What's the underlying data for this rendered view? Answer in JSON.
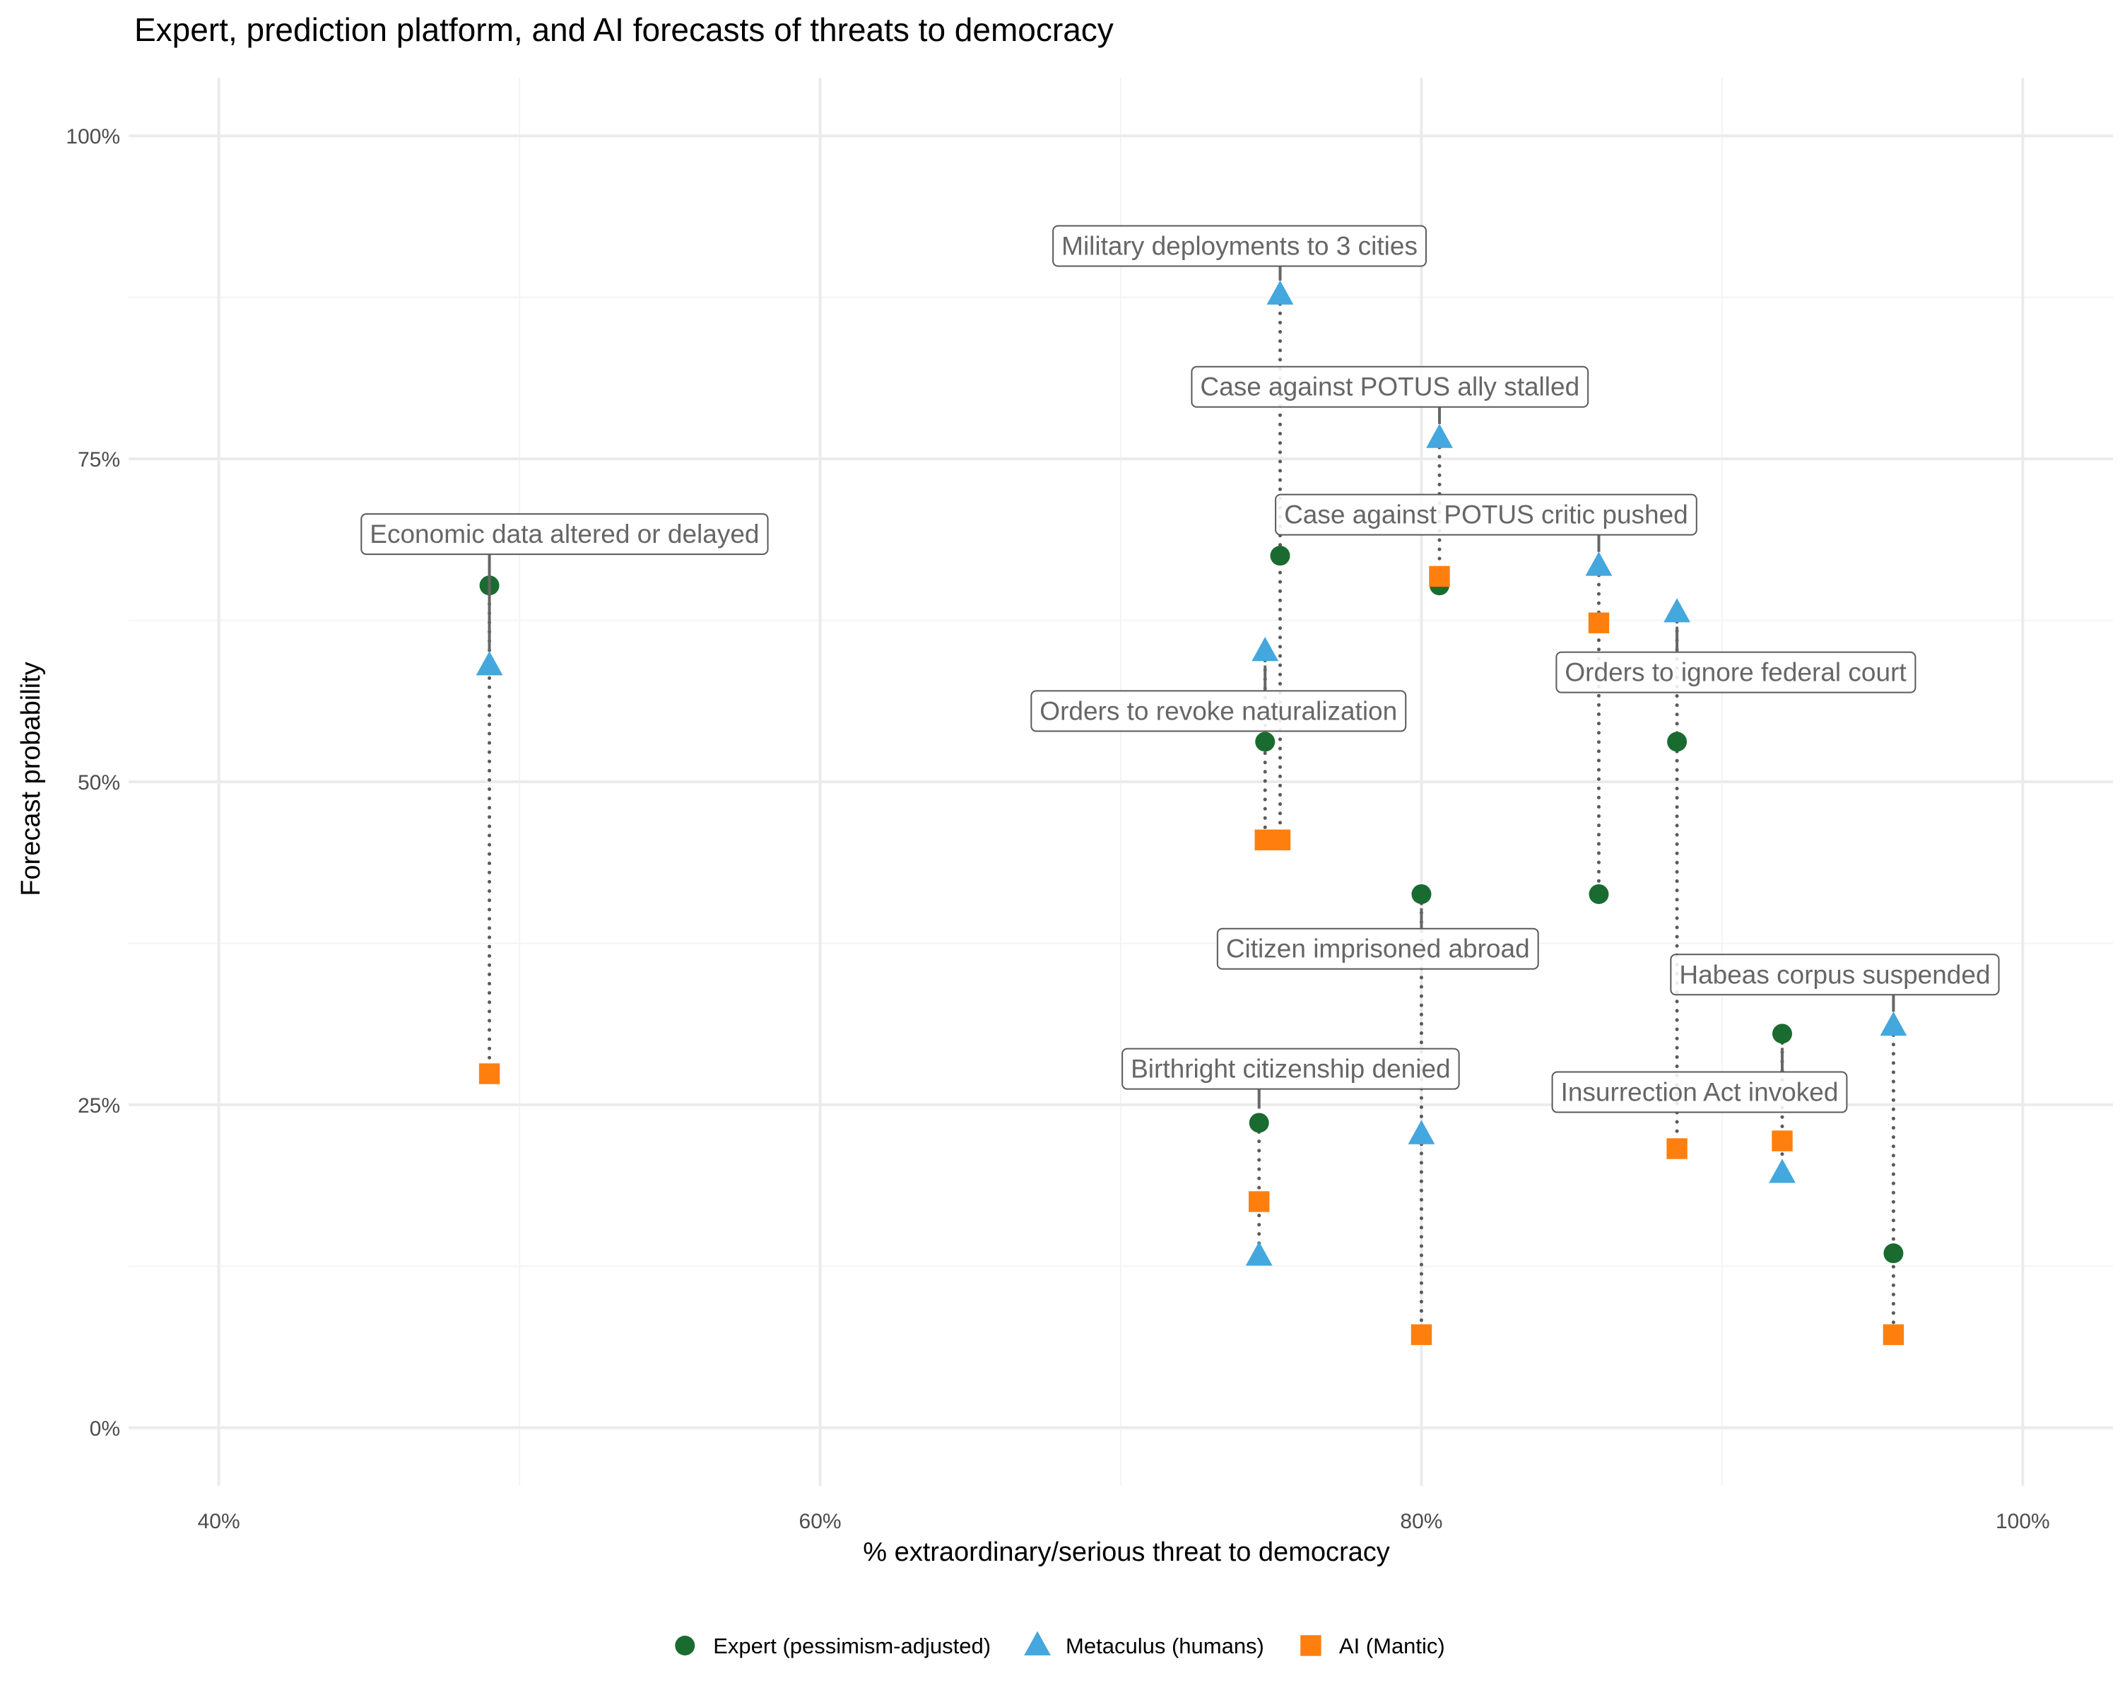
{
  "chart_data": {
    "type": "scatter",
    "title": "Expert, prediction platform, and AI forecasts of threats to democracy",
    "xlabel": "% extraordinary/serious threat to democracy",
    "ylabel": "Forecast probability",
    "xlim": [
      0.37,
      1.03
    ],
    "ylim": [
      -0.045,
      1.045
    ],
    "x_ticks": [
      {
        "value": 0.4,
        "label": "40%"
      },
      {
        "value": 0.6,
        "label": "60%"
      },
      {
        "value": 0.8,
        "label": "80%"
      },
      {
        "value": 1.0,
        "label": "100%"
      }
    ],
    "y_ticks": [
      {
        "value": 0.0,
        "label": "0%"
      },
      {
        "value": 0.25,
        "label": "25%"
      },
      {
        "value": 0.5,
        "label": "50%"
      },
      {
        "value": 0.75,
        "label": "75%"
      },
      {
        "value": 1.0,
        "label": "100%"
      }
    ],
    "grid": true,
    "legend_position": "bottom",
    "legend": [
      {
        "label": "Expert (pessimism-adjusted)",
        "shape": "circle",
        "color": "#1a6b30"
      },
      {
        "label": "Metaculus (humans)",
        "shape": "triangle",
        "color": "#44a7dd"
      },
      {
        "label": "AI (Mantic)",
        "shape": "square",
        "color": "#ff7f0e"
      }
    ],
    "events": [
      {
        "label": "Economic data altered or delayed",
        "x": 0.49,
        "expert": 0.652,
        "metaculus": 0.59,
        "ai": 0.274,
        "label_at": "metaculus",
        "label_x": 0.515,
        "label_y": 0.692
      },
      {
        "label": "Military deployments to 3 cities",
        "x": 0.753,
        "expert": 0.675,
        "metaculus": 0.877,
        "ai": 0.455,
        "label_at": "metaculus",
        "label_x": 0.7395,
        "label_y": 0.915
      },
      {
        "label": "Case against POTUS ally stalled",
        "x": 0.806,
        "expert": 0.652,
        "metaculus": 0.766,
        "ai": 0.659,
        "label_at": "metaculus",
        "label_x": 0.7895,
        "label_y": 0.806
      },
      {
        "label": "Case against POTUS critic pushed",
        "x": 0.859,
        "expert": 0.413,
        "metaculus": 0.667,
        "ai": 0.623,
        "label_at": "metaculus",
        "label_x": 0.8215,
        "label_y": 0.707
      },
      {
        "label": "Orders to revoke naturalization",
        "x": 0.748,
        "expert": 0.531,
        "metaculus": 0.601,
        "ai": 0.455,
        "label_at": "metaculus",
        "label_x": 0.7325,
        "label_y": 0.555
      },
      {
        "label": "Orders to ignore federal court",
        "x": 0.885,
        "expert": 0.531,
        "metaculus": 0.631,
        "ai": 0.216,
        "label_at": "metaculus",
        "label_x": 0.9045,
        "label_y": 0.585
      },
      {
        "label": "Citizen imprisoned abroad",
        "x": 0.8,
        "expert": 0.413,
        "metaculus": 0.227,
        "ai": 0.072,
        "label_at": "expert",
        "label_x": 0.7855,
        "label_y": 0.371
      },
      {
        "label": "Habeas corpus suspended",
        "x": 0.957,
        "expert": 0.135,
        "metaculus": 0.311,
        "ai": 0.072,
        "label_at": "metaculus",
        "label_x": 0.9375,
        "label_y": 0.351
      },
      {
        "label": "Birthright citizenship denied",
        "x": 0.746,
        "expert": 0.236,
        "metaculus": 0.133,
        "ai": 0.175,
        "label_at": "expert",
        "label_x": 0.7565,
        "label_y": 0.278
      },
      {
        "label": "Insurrection Act invoked",
        "x": 0.92,
        "expert": 0.305,
        "metaculus": 0.197,
        "ai": 0.222,
        "label_at": "expert",
        "label_x": 0.8925,
        "label_y": 0.26
      }
    ]
  }
}
